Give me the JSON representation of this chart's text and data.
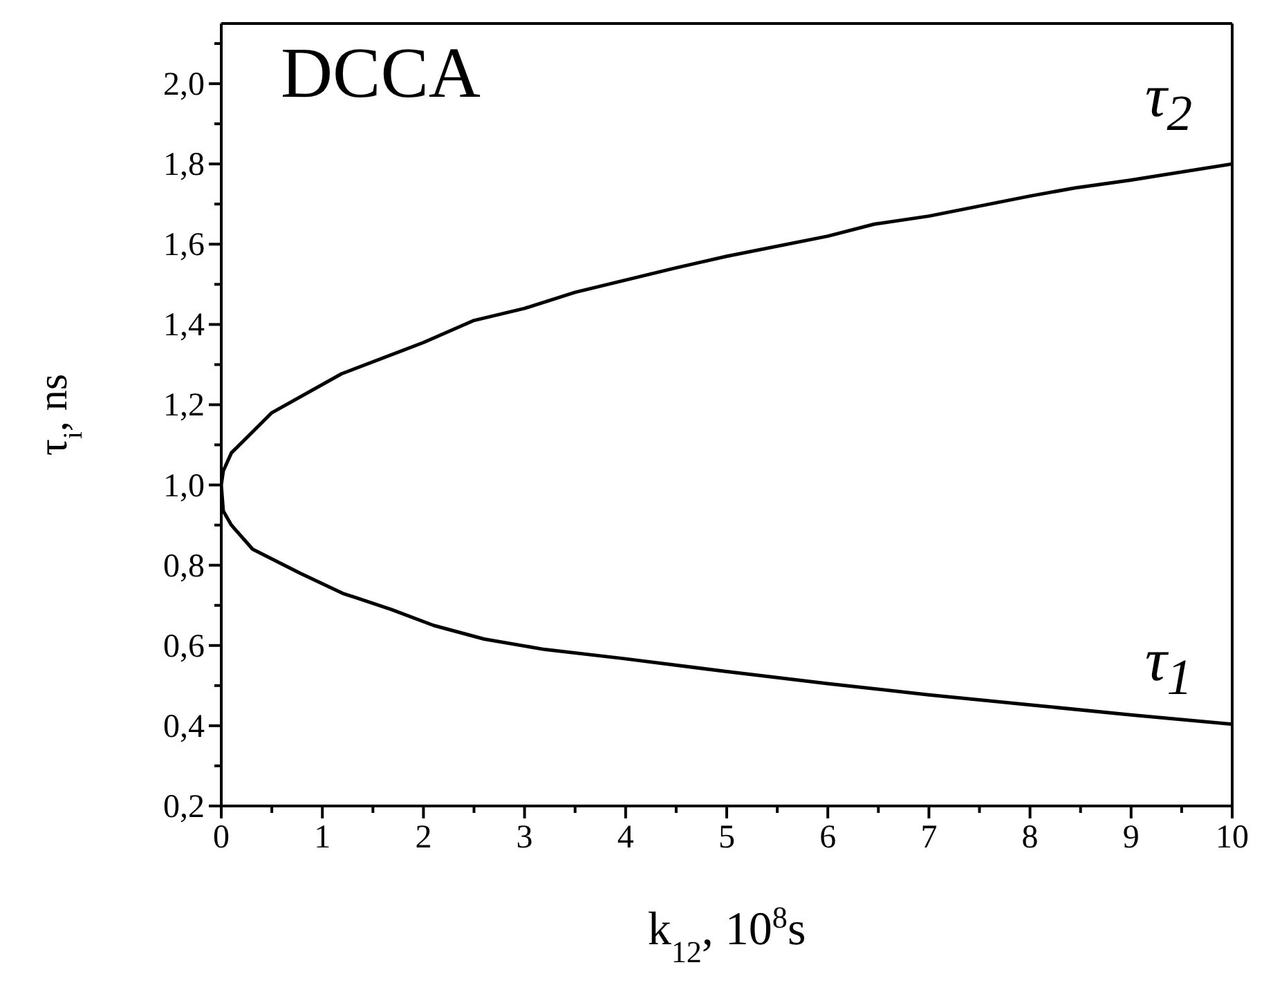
{
  "chart_data": {
    "type": "line",
    "xlabel": "k$_{12}$, 10$^{8}$s",
    "ylabel": "τ$_{i}$, ns",
    "annotations": [
      "DCCA",
      "τ$_{2}$",
      "τ$_{1}$"
    ],
    "series": [
      {
        "color": "#000000",
        "x": [
          10,
          9,
          8,
          7,
          6,
          5,
          3.96,
          3.2,
          2.6,
          2.1,
          1.68,
          1.2,
          0.78,
          0.31,
          0.1,
          0.02,
          0,
          0.02,
          0.1,
          0.26,
          0.5,
          1.19,
          2,
          2.5,
          3,
          3.5,
          4.48,
          5,
          6,
          6.46,
          7,
          8,
          8.44,
          9,
          10
        ],
        "values": [
          0.404,
          0.427,
          0.452,
          0.477,
          0.505,
          0.535,
          0.568,
          0.59,
          0.616,
          0.65,
          0.69,
          0.73,
          0.78,
          0.84,
          0.9,
          0.935,
          1.0,
          1.035,
          1.08,
          1.12,
          1.18,
          1.277,
          1.355,
          1.41,
          1.44,
          1.48,
          1.54,
          1.57,
          1.62,
          1.65,
          1.67,
          1.72,
          1.74,
          1.76,
          1.8
        ]
      }
    ],
    "xlim": [
      0,
      10
    ],
    "xticks": [
      0,
      {
        "value": 0.5,
        "label": null
      },
      1,
      {
        "value": 1.5,
        "label": null
      },
      2,
      {
        "value": 2.5,
        "label": null
      },
      3,
      {
        "value": 3.5,
        "label": null
      },
      4,
      {
        "value": 4.5,
        "label": null
      },
      5,
      {
        "value": 5.5,
        "label": null
      },
      6,
      {
        "value": 6.5,
        "label": null
      },
      7,
      {
        "value": 7.5,
        "label": null
      },
      8,
      {
        "value": 8.5,
        "label": null
      },
      9,
      {
        "value": 9.5,
        "label": null
      },
      10
    ],
    "ylim": [
      0.2,
      2.15
    ],
    "yticks": [
      {
        "value": 0.2,
        "label": "0,2"
      },
      {
        "value": 0.3,
        "label": null
      },
      {
        "value": 0.4,
        "label": "0,4"
      },
      {
        "value": 0.5,
        "label": null
      },
      {
        "value": 0.6,
        "label": "0,6"
      },
      {
        "value": 0.7,
        "label": null
      },
      {
        "value": 0.8,
        "label": "0,8"
      },
      {
        "value": 0.9,
        "label": null
      },
      {
        "value": 1.0,
        "label": "1,0"
      },
      {
        "value": 1.1,
        "label": null
      },
      {
        "value": 1.2,
        "label": "1,2"
      },
      {
        "value": 1.3,
        "label": null
      },
      {
        "value": 1.4,
        "label": "1,4"
      },
      {
        "value": 1.5,
        "label": null
      },
      {
        "value": 1.6,
        "label": "1,6"
      },
      {
        "value": 1.7,
        "label": null
      },
      {
        "value": 1.8,
        "label": "1,8"
      },
      {
        "value": 1.9,
        "label": null
      },
      {
        "value": 2.0,
        "label": "2,0"
      },
      {
        "value": 2.1,
        "label": null
      }
    ],
    "grid": false,
    "legend": false,
    "marker": "none",
    "line_style": "solid"
  }
}
